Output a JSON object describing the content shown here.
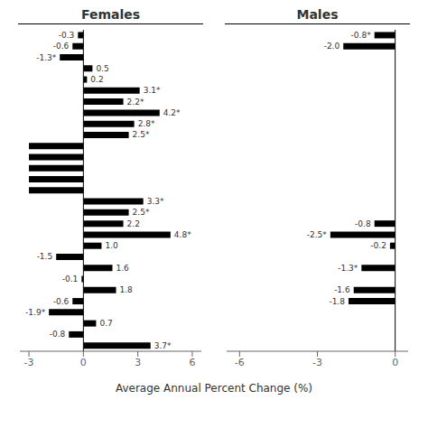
{
  "chart_data": [
    {
      "type": "bar",
      "orientation": "horizontal",
      "title": "Females",
      "xlabel": "Average Annual Percent Change (%)",
      "values": [
        -0.3,
        -0.6,
        -1.3,
        0.5,
        0.2,
        3.1,
        2.2,
        4.2,
        2.8,
        2.5,
        -3.0,
        -3.0,
        -3.0,
        -3.0,
        -3.0,
        3.3,
        2.5,
        2.2,
        4.8,
        1.0,
        -1.5,
        1.6,
        -0.1,
        1.8,
        -0.6,
        -1.9,
        0.7,
        -0.8,
        3.7
      ],
      "value_labels": [
        "-0.3",
        "-0.6",
        "-1.3*",
        "0.5",
        "0.2",
        "3.1*",
        "2.2*",
        "4.2*",
        "2.8*",
        "2.5*",
        null,
        null,
        null,
        null,
        null,
        "3.3*",
        "2.5*",
        "2.2",
        "4.8*",
        "1.0",
        "-1.5",
        "1.6",
        "-0.1",
        "1.8",
        "-0.6",
        "-1.9*",
        "0.7",
        "-0.8",
        "3.7*"
      ],
      "data_labels": true,
      "color": "#000000",
      "xlim": [
        -3.5,
        6.5
      ],
      "xticks": [
        -3,
        0,
        3,
        6
      ],
      "tick_labels": "x"
    },
    {
      "type": "bar",
      "orientation": "horizontal",
      "title": "Males",
      "values": [
        -0.8,
        -2.0,
        null,
        null,
        null,
        null,
        null,
        null,
        null,
        null,
        null,
        null,
        null,
        null,
        null,
        null,
        null,
        -0.8,
        -2.5,
        -0.2,
        null,
        -1.3,
        null,
        -1.6,
        -1.8
      ],
      "value_labels": [
        "-0.8*",
        "-2.0",
        null,
        null,
        null,
        null,
        null,
        null,
        null,
        null,
        null,
        null,
        null,
        null,
        null,
        null,
        null,
        "-0.8",
        "-2.5*",
        "-0.2",
        null,
        "-1.3*",
        null,
        "-1.6",
        "-1.8"
      ],
      "data_labels": true,
      "color": "#000000",
      "xlim": [
        -6.5,
        0.5
      ],
      "xticks": [
        -6,
        -3,
        0
      ],
      "tick_labels": "x"
    }
  ]
}
